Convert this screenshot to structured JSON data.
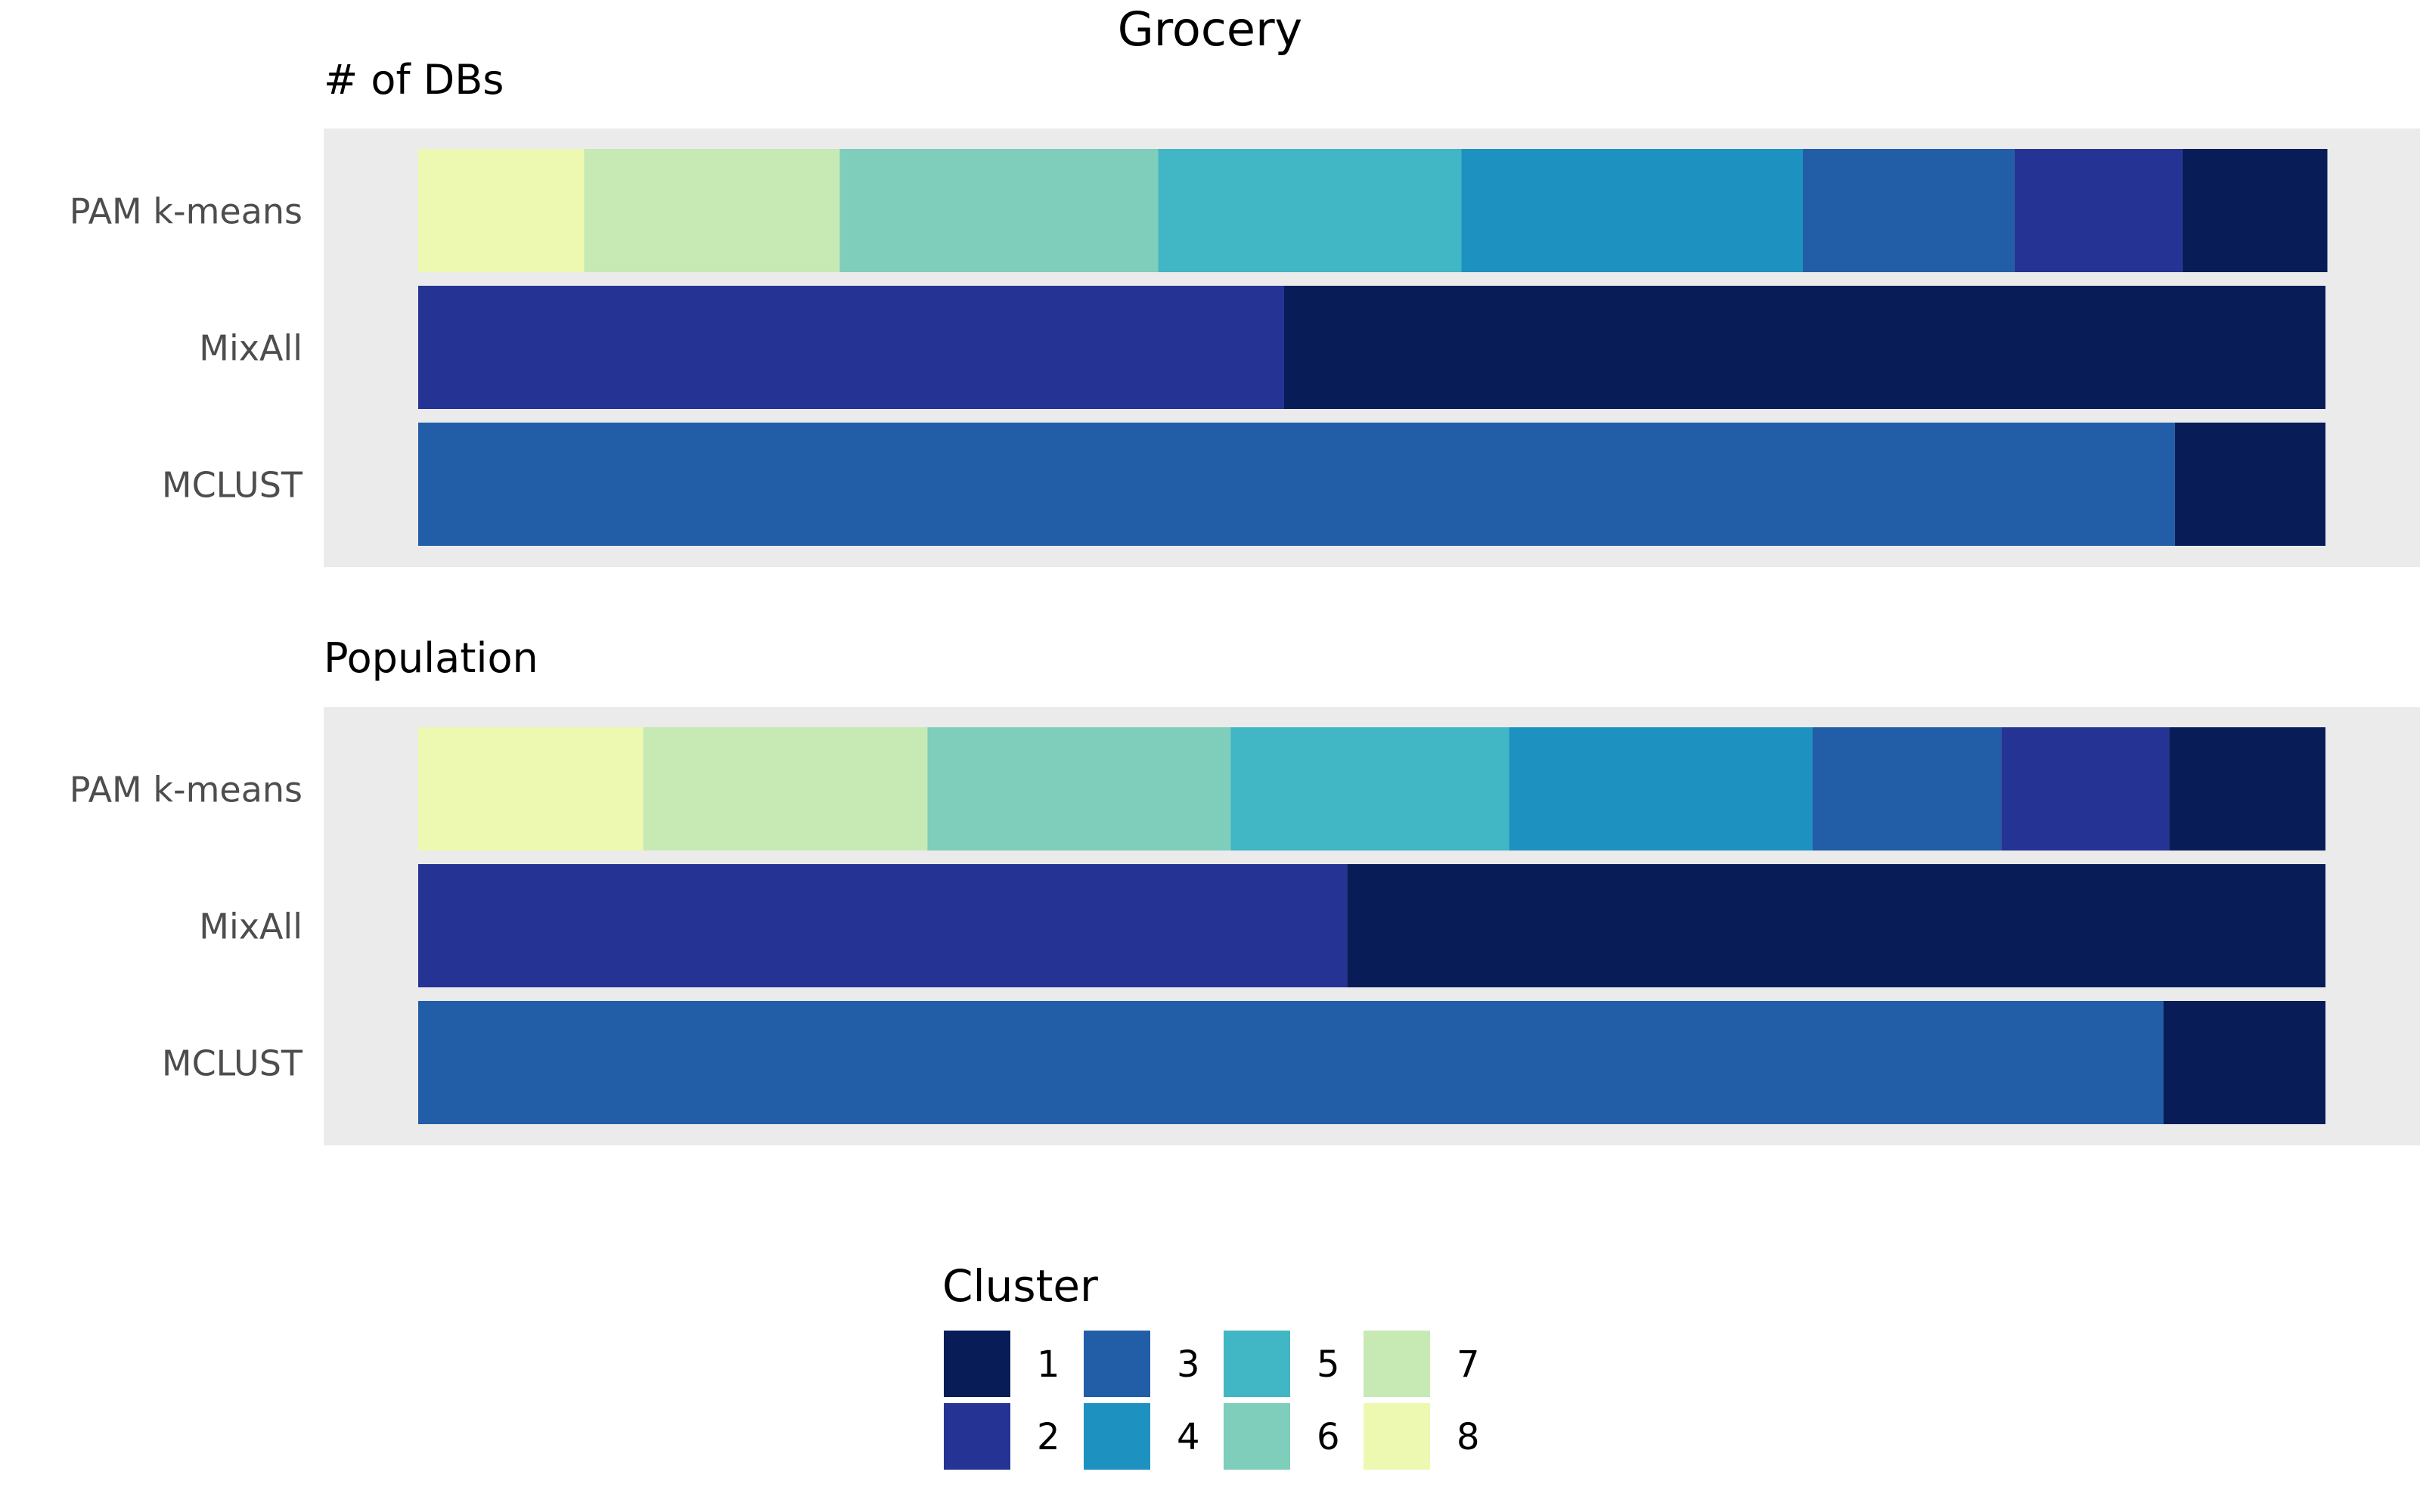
{
  "chart_data": {
    "type": "bar",
    "title": "Grocery",
    "orientation": "horizontal",
    "stacked": true,
    "normalized": true,
    "grid": false,
    "legend_position": "bottom",
    "legend_title": "Cluster",
    "clusters": [
      "1",
      "2",
      "3",
      "4",
      "5",
      "6",
      "7",
      "8"
    ],
    "colors": {
      "1": "#081d58",
      "2": "#253494",
      "3": "#225ea8",
      "4": "#1d91c0",
      "5": "#41b6c4",
      "6": "#7fcdbb",
      "7": "#c7e9b4",
      "8": "#edf8b1"
    },
    "panel_background": "#ebebeb",
    "panels": [
      {
        "title": "# of DBs",
        "methods": [
          "PAM k-means",
          "MixAll",
          "MCLUST"
        ],
        "series": [
          {
            "method": "PAM k-means",
            "shares": {
              "1": 0.076,
              "2": 0.088,
              "3": 0.111,
              "4": 0.179,
              "5": 0.159,
              "6": 0.167,
              "7": 0.134,
              "8": 0.087
            }
          },
          {
            "method": "MixAll",
            "shares": {
              "1": 0.546,
              "2": 0.454
            }
          },
          {
            "method": "MCLUST",
            "shares": {
              "1": 0.079,
              "3": 0.921
            }
          }
        ]
      },
      {
        "title": "Population",
        "methods": [
          "PAM k-means",
          "MixAll",
          "MCLUST"
        ],
        "series": [
          {
            "method": "PAM k-means",
            "shares": {
              "1": 0.082,
              "2": 0.088,
              "3": 0.099,
              "4": 0.159,
              "5": 0.146,
              "6": 0.159,
              "7": 0.149,
              "8": 0.118
            }
          },
          {
            "method": "MixAll",
            "shares": {
              "1": 0.513,
              "2": 0.487
            }
          },
          {
            "method": "MCLUST",
            "shares": {
              "1": 0.085,
              "3": 0.915
            }
          }
        ]
      }
    ]
  }
}
